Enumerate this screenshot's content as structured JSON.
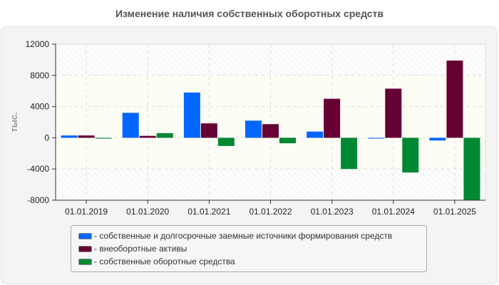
{
  "chart_data": {
    "type": "bar",
    "title": "Изменение наличия собственных оборотных средств",
    "ylabel": "тыс.",
    "xlabel": "",
    "ylim": [
      -8000,
      12000
    ],
    "yticks": [
      12000,
      8000,
      4000,
      0,
      -4000,
      -8000
    ],
    "grid": true,
    "legend_position": "bottom",
    "categories": [
      "01.01.2019",
      "01.01.2020",
      "01.01.2021",
      "01.01.2022",
      "01.01.2023",
      "01.01.2024",
      "01.01.2025"
    ],
    "series": [
      {
        "name": "- собственные и долгосрочные заемные источники формирования средств",
        "color": "#0066ff",
        "values": [
          300,
          3200,
          5800,
          2200,
          800,
          -50,
          -350
        ]
      },
      {
        "name": "- внеоборотные активы",
        "color": "#660033",
        "values": [
          300,
          250,
          1850,
          1750,
          5000,
          6300,
          9900
        ]
      },
      {
        "name": "- собственные оборотные средства",
        "color": "#008833",
        "values": [
          -100,
          600,
          -1050,
          -700,
          -4000,
          -4450,
          -7950
        ]
      }
    ]
  }
}
